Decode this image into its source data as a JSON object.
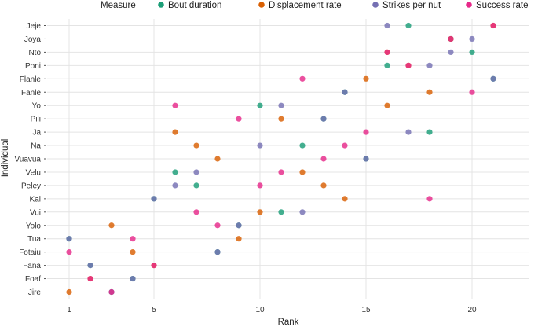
{
  "chart_data": {
    "type": "scatter",
    "xlabel": "Rank",
    "ylabel": "Individual",
    "xlim": [
      0.5,
      21.5
    ],
    "x_ticks": [
      1,
      5,
      10,
      15,
      20
    ],
    "grid": true,
    "legend": {
      "title": "Measure",
      "placement": "top"
    },
    "categories": [
      "Jeje",
      "Joya",
      "Nto",
      "Poni",
      "Flanle",
      "Fanle",
      "Yo",
      "Pili",
      "Ja",
      "Na",
      "Vuavua",
      "Velu",
      "Peley",
      "Kai",
      "Vui",
      "Yolo",
      "Tua",
      "Fotaiu",
      "Fana",
      "Foaf",
      "Jire"
    ],
    "series": [
      {
        "name": "Bout duration",
        "color": "#1b9e77",
        "values": [
          17,
          19,
          20,
          16,
          21,
          14,
          10,
          13,
          18,
          12,
          15,
          6,
          7,
          5,
          11,
          9,
          1,
          8,
          2,
          4,
          3
        ]
      },
      {
        "name": "Displacement rate",
        "color": "#d95f02",
        "values": [
          21,
          19,
          16,
          17,
          15,
          18,
          16,
          11,
          6,
          7,
          8,
          12,
          13,
          14,
          10,
          3,
          9,
          4,
          5,
          2,
          1
        ]
      },
      {
        "name": "Strikes per nut",
        "color": "#7570b3",
        "values": [
          16,
          20,
          19,
          18,
          21,
          14,
          11,
          13,
          17,
          10,
          15,
          7,
          6,
          5,
          12,
          9,
          1,
          8,
          2,
          4,
          3
        ]
      },
      {
        "name": "Success rate",
        "color": "#e7298a",
        "values": [
          21,
          19,
          16,
          17,
          12,
          20,
          6,
          9,
          15,
          14,
          13,
          11,
          10,
          18,
          7,
          8,
          4,
          1,
          5,
          2,
          3
        ]
      }
    ]
  }
}
